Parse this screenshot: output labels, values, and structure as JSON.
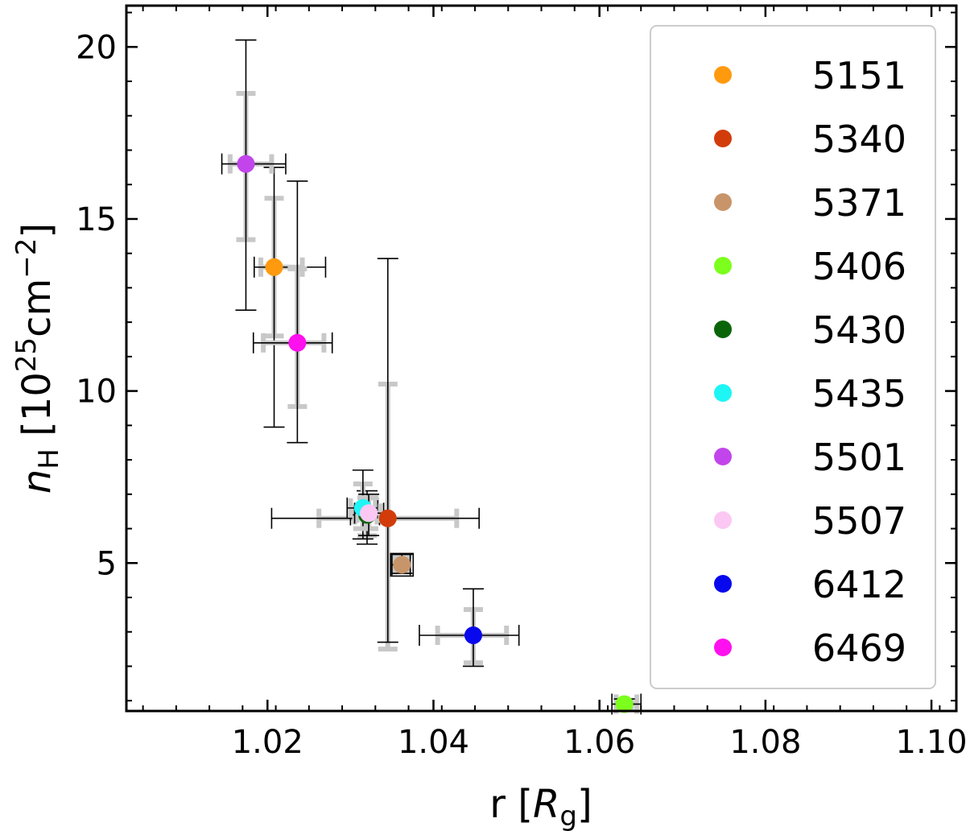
{
  "chart_data": {
    "type": "scatter",
    "xlabel": {
      "base": "r [",
      "var": "R",
      "sub": "g",
      "close": "]"
    },
    "ylabel": {
      "var": "n",
      "sub": "H",
      "unit_open": " [10",
      "exp": "25",
      "unit": "cm",
      "exp2": "−2",
      "close": "]"
    },
    "xlim": [
      1.003,
      1.103
    ],
    "ylim": [
      0.7,
      21.2
    ],
    "xticks": [
      1.02,
      1.04,
      1.06,
      1.08,
      1.1
    ],
    "xtick_labels": [
      "1.02",
      "1.04",
      "1.06",
      "1.08",
      "1.10"
    ],
    "yticks": [
      5,
      10,
      15,
      20
    ],
    "ytick_labels": [
      "5",
      "10",
      "15",
      "20"
    ],
    "grid": false,
    "legend_position": "right",
    "series": [
      {
        "name": "5151",
        "color": "#ff9a0f",
        "x": 1.0208,
        "y": 13.6,
        "xerr_black": [
          0.0184,
          0.027
        ],
        "xerr_gray": [
          0.0192,
          0.0242
        ],
        "yerr_black": [
          8.95,
          16.5
        ],
        "yerr_gray": [
          11.6,
          15.6
        ]
      },
      {
        "name": "5340",
        "color": "#d23c0b",
        "x": 1.0345,
        "y": 6.3,
        "xerr_black": [
          1.0205,
          1.0455
        ],
        "xerr_gray": [
          1.0262,
          1.0428
        ],
        "yerr_black": [
          2.7,
          13.85
        ],
        "yerr_gray": [
          2.5,
          10.2
        ]
      },
      {
        "name": "5371",
        "color": "#c8956a",
        "x": 1.0362,
        "y": 4.95,
        "xerr_black": [
          1.035,
          1.0372
        ],
        "xerr_gray": [
          1.0353,
          1.037
        ],
        "yerr_black": [
          4.7,
          5.25
        ],
        "yerr_gray": [
          4.75,
          5.2
        ]
      },
      {
        "name": "5406",
        "color": "#7cff1c",
        "x": 1.063,
        "y": 0.9,
        "xerr_black": [
          1.0615,
          1.065
        ],
        "xerr_gray": [
          1.062,
          1.0645
        ],
        "yerr_black": [
          0.7,
          1.05
        ],
        "yerr_gray": [
          0.75,
          1.0
        ]
      },
      {
        "name": "5430",
        "color": "#0a650a",
        "x": 1.032,
        "y": 6.4,
        "xerr_black": [
          1.03,
          1.0335
        ],
        "xerr_gray": [
          1.0305,
          1.0332
        ],
        "yerr_black": [
          5.55,
          7.1
        ],
        "yerr_gray": [
          5.8,
          6.9
        ]
      },
      {
        "name": "5435",
        "color": "#1ef5f5",
        "x": 1.0315,
        "y": 6.6,
        "xerr_black": [
          1.0296,
          1.0333
        ],
        "xerr_gray": [
          1.03,
          1.033
        ],
        "yerr_black": [
          5.7,
          7.7
        ],
        "yerr_gray": [
          6.0,
          7.3
        ]
      },
      {
        "name": "5501",
        "color": "#c245ec",
        "x": 1.0174,
        "y": 16.6,
        "xerr_black": [
          1.0145,
          1.0222
        ],
        "xerr_gray": [
          1.0155,
          1.0205
        ],
        "yerr_black": [
          12.35,
          20.2
        ],
        "yerr_gray": [
          14.4,
          18.65
        ]
      },
      {
        "name": "5507",
        "color": "#fbc8f4",
        "x": 1.0322,
        "y": 6.45,
        "xerr_black": [
          1.0305,
          1.034
        ],
        "xerr_gray": [
          1.0308,
          1.0336
        ],
        "yerr_black": [
          5.8,
          7.0
        ],
        "yerr_gray": [
          6.0,
          6.9
        ]
      },
      {
        "name": "6412",
        "color": "#0808ee",
        "x": 1.0448,
        "y": 2.9,
        "xerr_black": [
          1.0383,
          1.0503
        ],
        "xerr_gray": [
          1.0405,
          1.0488
        ],
        "yerr_black": [
          2.0,
          4.25
        ],
        "yerr_gray": [
          2.1,
          3.65
        ]
      },
      {
        "name": "6469",
        "color": "#ff10ee",
        "x": 1.0236,
        "y": 11.4,
        "xerr_black": [
          1.0183,
          1.0278
        ],
        "xerr_gray": [
          1.0195,
          1.0268
        ],
        "yerr_black": [
          8.5,
          16.1
        ],
        "yerr_gray": [
          9.55,
          13.55
        ]
      }
    ]
  }
}
